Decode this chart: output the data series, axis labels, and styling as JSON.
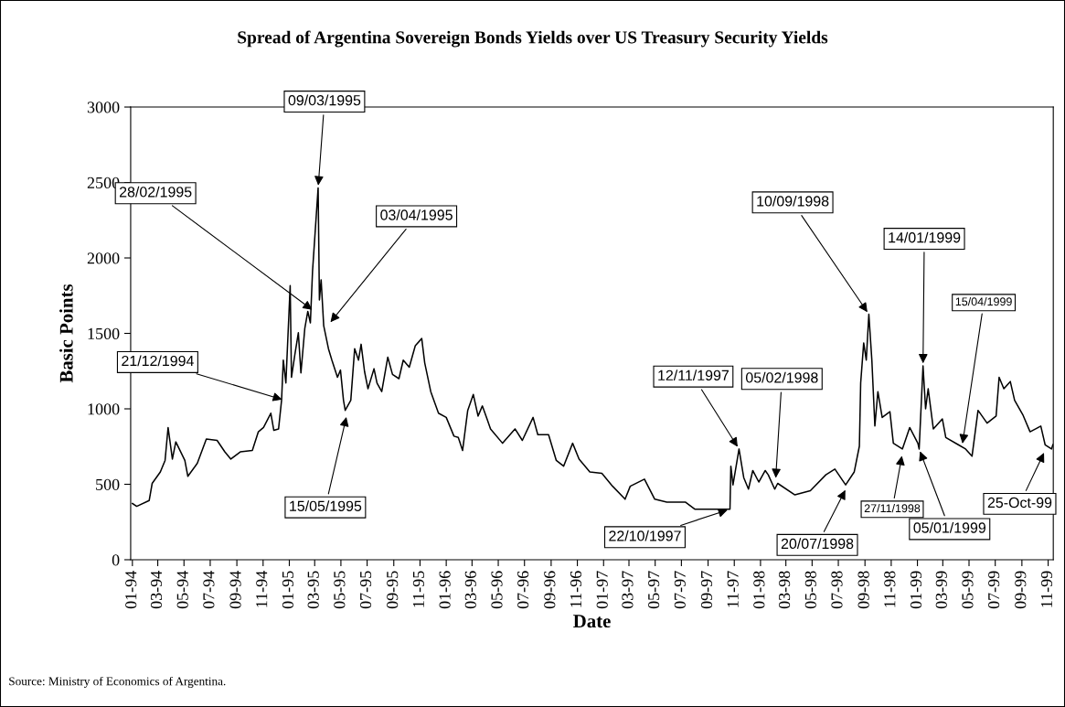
{
  "chart_data": {
    "type": "line",
    "title": "Spread of Argentina Sovereign Bonds Yields over US Treasury Security Yields",
    "xlabel": "Date",
    "ylabel": "Basic Points",
    "x": [
      "1994-01-01",
      "1994-01-11",
      "1994-02-09",
      "1994-02-16",
      "1994-03-07",
      "1994-03-18",
      "1994-03-25",
      "1994-04-04",
      "1994-04-12",
      "1994-05-03",
      "1994-05-10",
      "1994-06-01",
      "1994-06-22",
      "1994-07-17",
      "1994-08-04",
      "1994-08-18",
      "1994-09-09",
      "1994-10-07",
      "1994-10-21",
      "1994-11-02",
      "1994-11-19",
      "1994-11-26",
      "1994-12-07",
      "1994-12-14",
      "1994-12-18",
      "1994-12-24",
      "1995-01-03",
      "1995-01-06",
      "1995-01-14",
      "1995-01-22",
      "1995-01-28",
      "1995-02-06",
      "1995-02-13",
      "1995-02-19",
      "1995-02-24",
      "1995-03-09",
      "1995-03-12",
      "1995-03-16",
      "1995-03-22",
      "1995-04-02",
      "1995-04-10",
      "1995-04-23",
      "1995-04-30",
      "1995-05-07",
      "1995-05-11",
      "1995-05-24",
      "1995-06-02",
      "1995-06-11",
      "1995-06-17",
      "1995-06-25",
      "1995-07-03",
      "1995-07-17",
      "1995-07-24",
      "1995-08-04",
      "1995-08-18",
      "1995-08-29",
      "1995-09-13",
      "1995-09-23",
      "1995-10-07",
      "1995-10-21",
      "1995-11-05",
      "1995-11-12",
      "1995-11-26",
      "1995-12-14",
      "1996-01-01",
      "1996-01-19",
      "1996-01-29",
      "1996-02-08",
      "1996-02-20",
      "1996-03-04",
      "1996-03-15",
      "1996-03-25",
      "1996-04-06",
      "1996-04-13",
      "1996-05-11",
      "1996-06-09",
      "1996-06-26",
      "1996-07-21",
      "1996-08-01",
      "1996-08-26",
      "1996-09-13",
      "1996-09-30",
      "1996-10-21",
      "1996-11-05",
      "1996-11-30",
      "1996-12-28",
      "1997-01-22",
      "1997-02-20",
      "1997-03-04",
      "1997-04-06",
      "1997-04-30",
      "1997-05-28",
      "1997-07-10",
      "1997-08-01",
      "1997-09-06",
      "1997-10-22",
      "1997-10-24",
      "1997-10-29",
      "1997-11-12",
      "1997-11-23",
      "1997-12-04",
      "1997-12-14",
      "1997-12-28",
      "1998-01-12",
      "1998-01-19",
      "1998-02-03",
      "1998-02-10",
      "1998-03-22",
      "1998-04-27",
      "1998-06-02",
      "1998-06-23",
      "1998-07-18",
      "1998-08-07",
      "1998-08-19",
      "1998-08-22",
      "1998-08-29",
      "1998-09-04",
      "1998-09-10",
      "1998-09-17",
      "1998-09-24",
      "1998-10-01",
      "1998-10-11",
      "1998-10-29",
      "1998-11-06",
      "1998-11-27",
      "1998-12-14",
      "1999-01-02",
      "1999-01-05",
      "1999-01-14",
      "1999-01-20",
      "1999-01-26",
      "1999-02-07",
      "1999-02-28",
      "1999-03-08",
      "1999-04-06",
      "1999-04-23",
      "1999-05-08",
      "1999-05-22",
      "1999-06-12",
      "1999-07-03",
      "1999-07-10",
      "1999-07-21",
      "1999-08-05",
      "1999-08-15",
      "1999-09-03",
      "1999-09-20",
      "1999-10-15",
      "1999-10-25",
      "1999-11-09",
      "1999-11-12"
    ],
    "series": [
      {
        "color": "#000000",
        "values": [
          373,
          354,
          392,
          506,
          582,
          658,
          876,
          667,
          781,
          658,
          553,
          639,
          800,
          791,
          715,
          667,
          715,
          724,
          848,
          876,
          971,
          857,
          867,
          1057,
          1323,
          1171,
          1817,
          1209,
          1361,
          1504,
          1238,
          1532,
          1646,
          1570,
          1912,
          2464,
          1722,
          1855,
          1551,
          1399,
          1323,
          1209,
          1257,
          1057,
          990,
          1057,
          1399,
          1323,
          1428,
          1247,
          1133,
          1266,
          1171,
          1114,
          1342,
          1228,
          1200,
          1323,
          1276,
          1418,
          1466,
          1304,
          1114,
          971,
          943,
          819,
          810,
          724,
          990,
          1095,
          952,
          1019,
          924,
          867,
          772,
          867,
          791,
          943,
          829,
          829,
          658,
          620,
          772,
          667,
          582,
          572,
          487,
          401,
          487,
          534,
          401,
          382,
          382,
          335,
          335,
          335,
          620,
          496,
          734,
          544,
          468,
          591,
          515,
          591,
          563,
          468,
          506,
          430,
          458,
          563,
          601,
          496,
          582,
          753,
          1171,
          1437,
          1323,
          1627,
          1323,
          886,
          1114,
          943,
          981,
          772,
          734,
          876,
          772,
          734,
          1285,
          1000,
          1133,
          867,
          933,
          810,
          762,
          734,
          686,
          990,
          905,
          952,
          1209,
          1133,
          1181,
          1057,
          962,
          848,
          886,
          762,
          734,
          762
        ]
      }
    ],
    "xlim": [
      "1993-12-28",
      "1999-11-13"
    ],
    "xticks": [
      {
        "value": "1994-01-01",
        "label": "01-94"
      },
      {
        "value": "1994-03-01",
        "label": "03-94"
      },
      {
        "value": "1994-05-01",
        "label": "05-94"
      },
      {
        "value": "1994-07-01",
        "label": "07-94"
      },
      {
        "value": "1994-09-01",
        "label": "09-94"
      },
      {
        "value": "1994-11-01",
        "label": "11-94"
      },
      {
        "value": "1995-01-01",
        "label": "01-95"
      },
      {
        "value": "1995-03-01",
        "label": "03-95"
      },
      {
        "value": "1995-05-01",
        "label": "05-95"
      },
      {
        "value": "1995-07-01",
        "label": "07-95"
      },
      {
        "value": "1995-09-01",
        "label": "09-95"
      },
      {
        "value": "1995-11-01",
        "label": "11-95"
      },
      {
        "value": "1996-01-01",
        "label": "01-96"
      },
      {
        "value": "1996-03-01",
        "label": "03-96"
      },
      {
        "value": "1996-05-01",
        "label": "05-96"
      },
      {
        "value": "1996-07-01",
        "label": "07-96"
      },
      {
        "value": "1996-09-01",
        "label": "09-96"
      },
      {
        "value": "1996-11-01",
        "label": "11-96"
      },
      {
        "value": "1997-01-01",
        "label": "01-97"
      },
      {
        "value": "1997-03-01",
        "label": "03-97"
      },
      {
        "value": "1997-05-01",
        "label": "05-97"
      },
      {
        "value": "1997-07-01",
        "label": "07-97"
      },
      {
        "value": "1997-09-01",
        "label": "09-97"
      },
      {
        "value": "1997-11-01",
        "label": "11-97"
      },
      {
        "value": "1998-01-01",
        "label": "01-98"
      },
      {
        "value": "1998-03-01",
        "label": "03-98"
      },
      {
        "value": "1998-05-01",
        "label": "05-98"
      },
      {
        "value": "1998-07-01",
        "label": "07-98"
      },
      {
        "value": "1998-09-01",
        "label": "09-98"
      },
      {
        "value": "1998-11-01",
        "label": "11-98"
      },
      {
        "value": "1999-01-01",
        "label": "01-99"
      },
      {
        "value": "1999-03-01",
        "label": "03-99"
      },
      {
        "value": "1999-05-01",
        "label": "05-99"
      },
      {
        "value": "1999-07-01",
        "label": "07-99"
      },
      {
        "value": "1999-09-01",
        "label": "09-99"
      },
      {
        "value": "1999-11-01",
        "label": "11-99"
      }
    ],
    "ylim": [
      0,
      3000
    ],
    "yticks": [
      0,
      500,
      1000,
      1500,
      2000,
      2500,
      3000
    ],
    "grid": false,
    "marker": "none",
    "line_style": "solid",
    "annotations": [
      {
        "text": "21/12/1994",
        "x": "1994-12-21",
        "y": 1057
      },
      {
        "text": "28/02/1995",
        "x": "1995-02-28",
        "y": 1646
      },
      {
        "text": "09/03/1995",
        "x": "1995-03-09",
        "y": 2464
      },
      {
        "text": "03/04/1995",
        "x": "1995-04-03",
        "y": 1561
      },
      {
        "text": "15/05/1995",
        "x": "1995-05-15",
        "y": 962
      },
      {
        "text": "12/11/1997",
        "x": "1997-11-12",
        "y": 734
      },
      {
        "text": "22/10/1997",
        "x": "1997-10-22",
        "y": 335
      },
      {
        "text": "05/02/1998",
        "x": "1998-02-05",
        "y": 525
      },
      {
        "text": "10/09/1998",
        "x": "1998-09-10",
        "y": 1627
      },
      {
        "text": "20/07/1998",
        "x": "1998-07-20",
        "y": 477
      },
      {
        "text": "14/01/1999",
        "x": "1999-01-14",
        "y": 1285
      },
      {
        "text": "27/11/1998",
        "x": "1998-11-27",
        "y": 705
      },
      {
        "text": "05/01/1999",
        "x": "1999-01-05",
        "y": 734
      },
      {
        "text": "15/04/1999",
        "x": "1999-04-15",
        "y": 753
      },
      {
        "text": "25-Oct-99",
        "x": "1999-10-25",
        "y": 724
      },
      "Source: Ministry of Economics of Argentina."
    ]
  }
}
